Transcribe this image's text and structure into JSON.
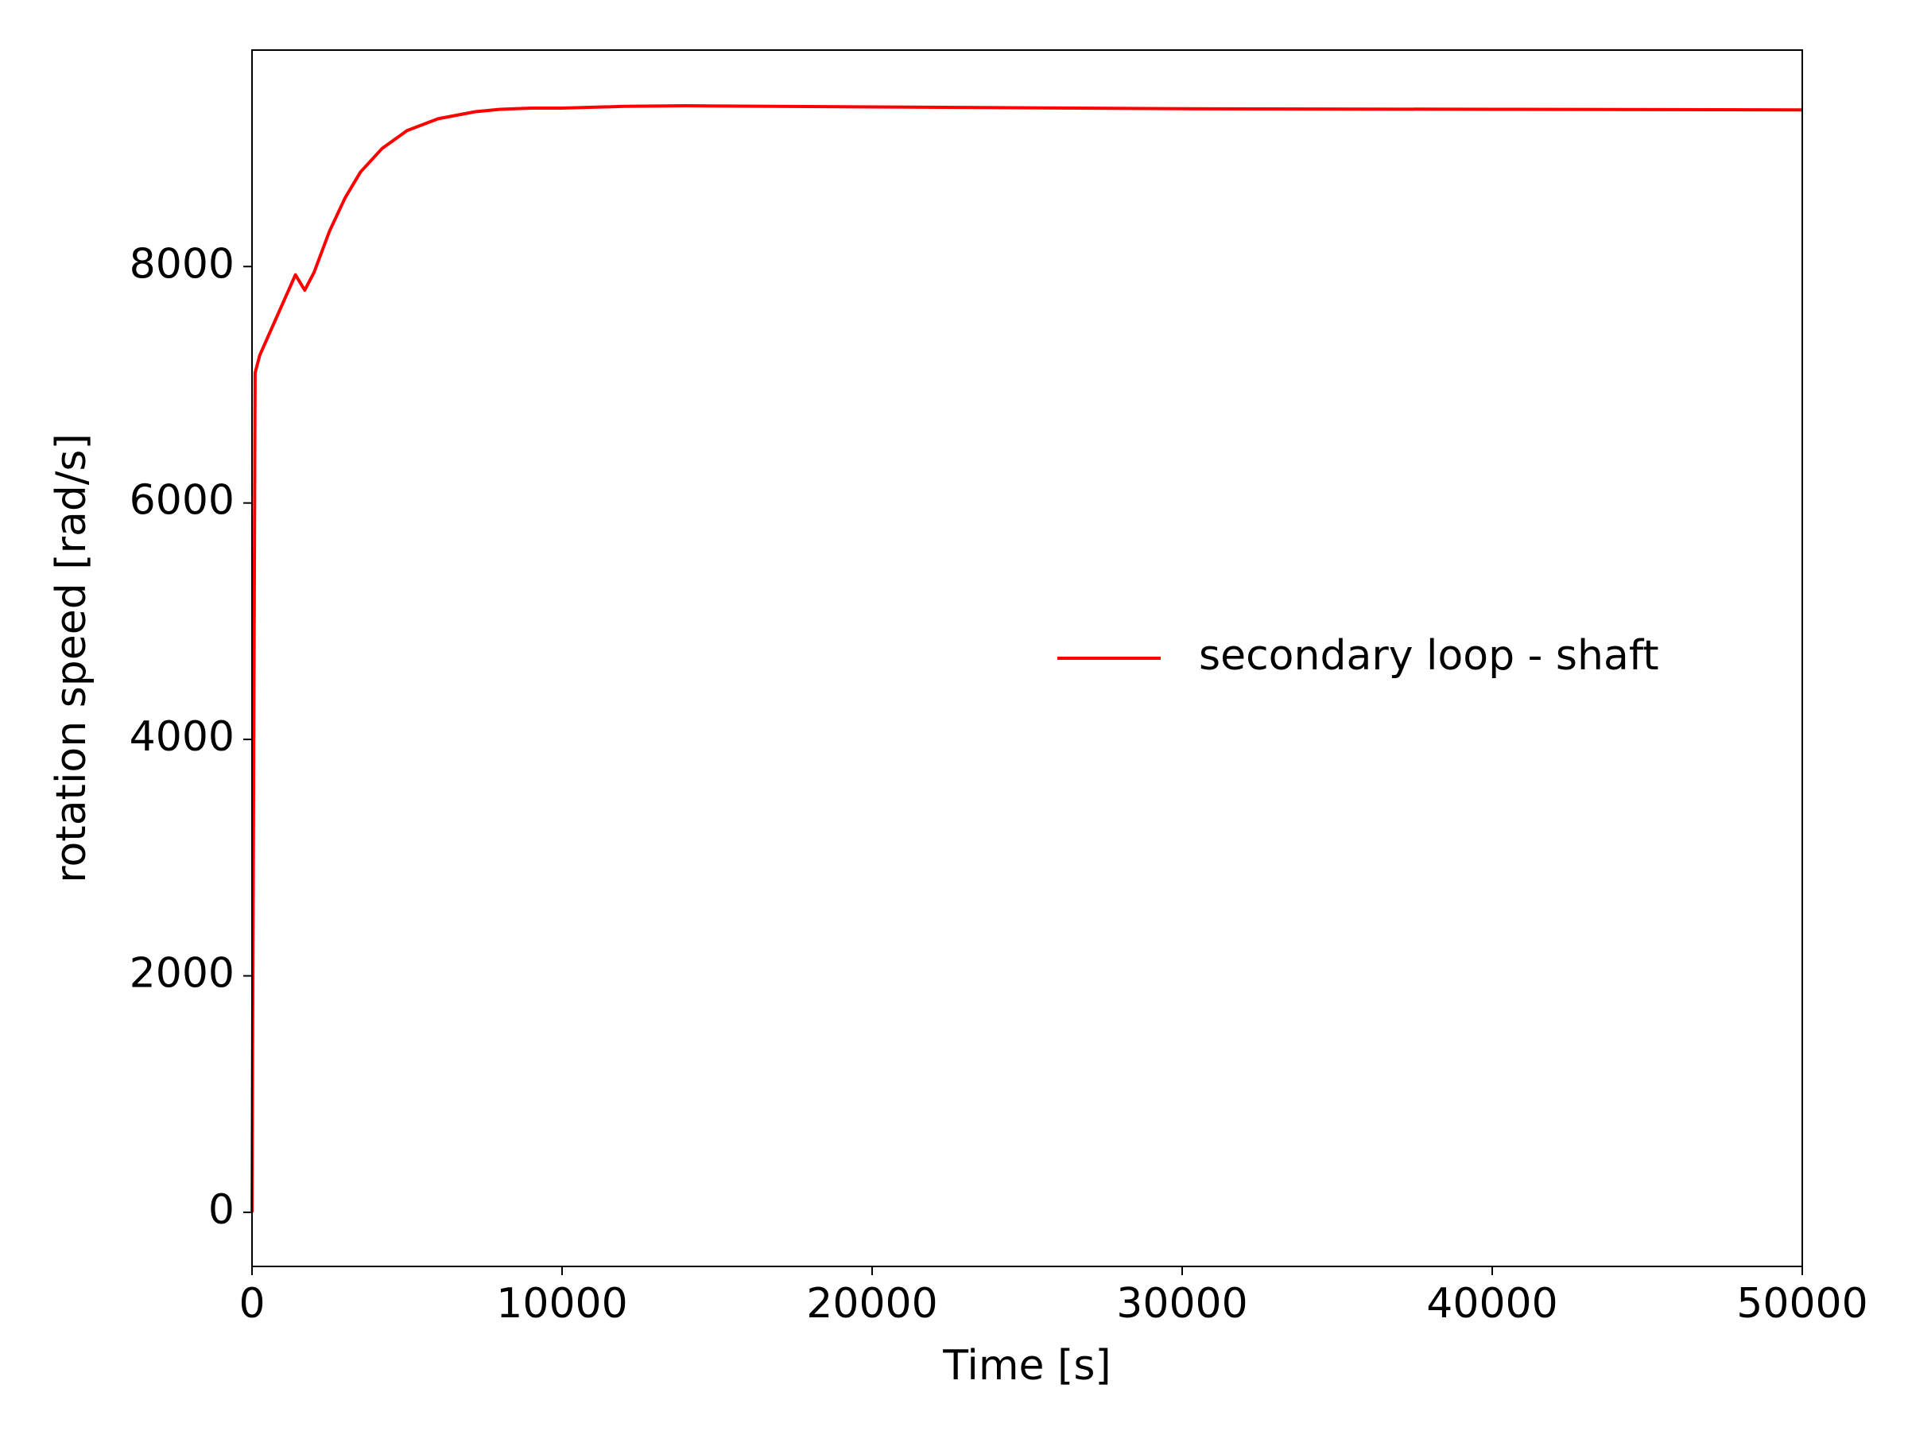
{
  "chart_data": {
    "type": "line",
    "x_label": "Time [s]",
    "y_label": "rotation speed [rad/s]",
    "x": [
      0,
      100,
      250,
      1400,
      1700,
      2000,
      2500,
      3000,
      3500,
      4200,
      5000,
      6000,
      7200,
      8000,
      9000,
      10000,
      12000,
      14000,
      20000,
      30000,
      40000,
      50000
    ],
    "series": [
      {
        "name": "secondary loop - shaft",
        "color": "#ff0000",
        "values": [
          0,
          7100,
          7250,
          7930,
          7800,
          7950,
          8300,
          8580,
          8800,
          9000,
          9150,
          9250,
          9310,
          9330,
          9340,
          9340,
          9355,
          9360,
          9350,
          9335,
          9330,
          9325
        ]
      }
    ],
    "xlim": [
      0,
      50000
    ],
    "xticks": [
      0,
      10000,
      20000,
      30000,
      40000,
      50000
    ],
    "ylim": [
      -458,
      9831
    ],
    "yticks": [
      0,
      2000,
      4000,
      6000,
      8000
    ],
    "grid": false,
    "legend": "right"
  }
}
